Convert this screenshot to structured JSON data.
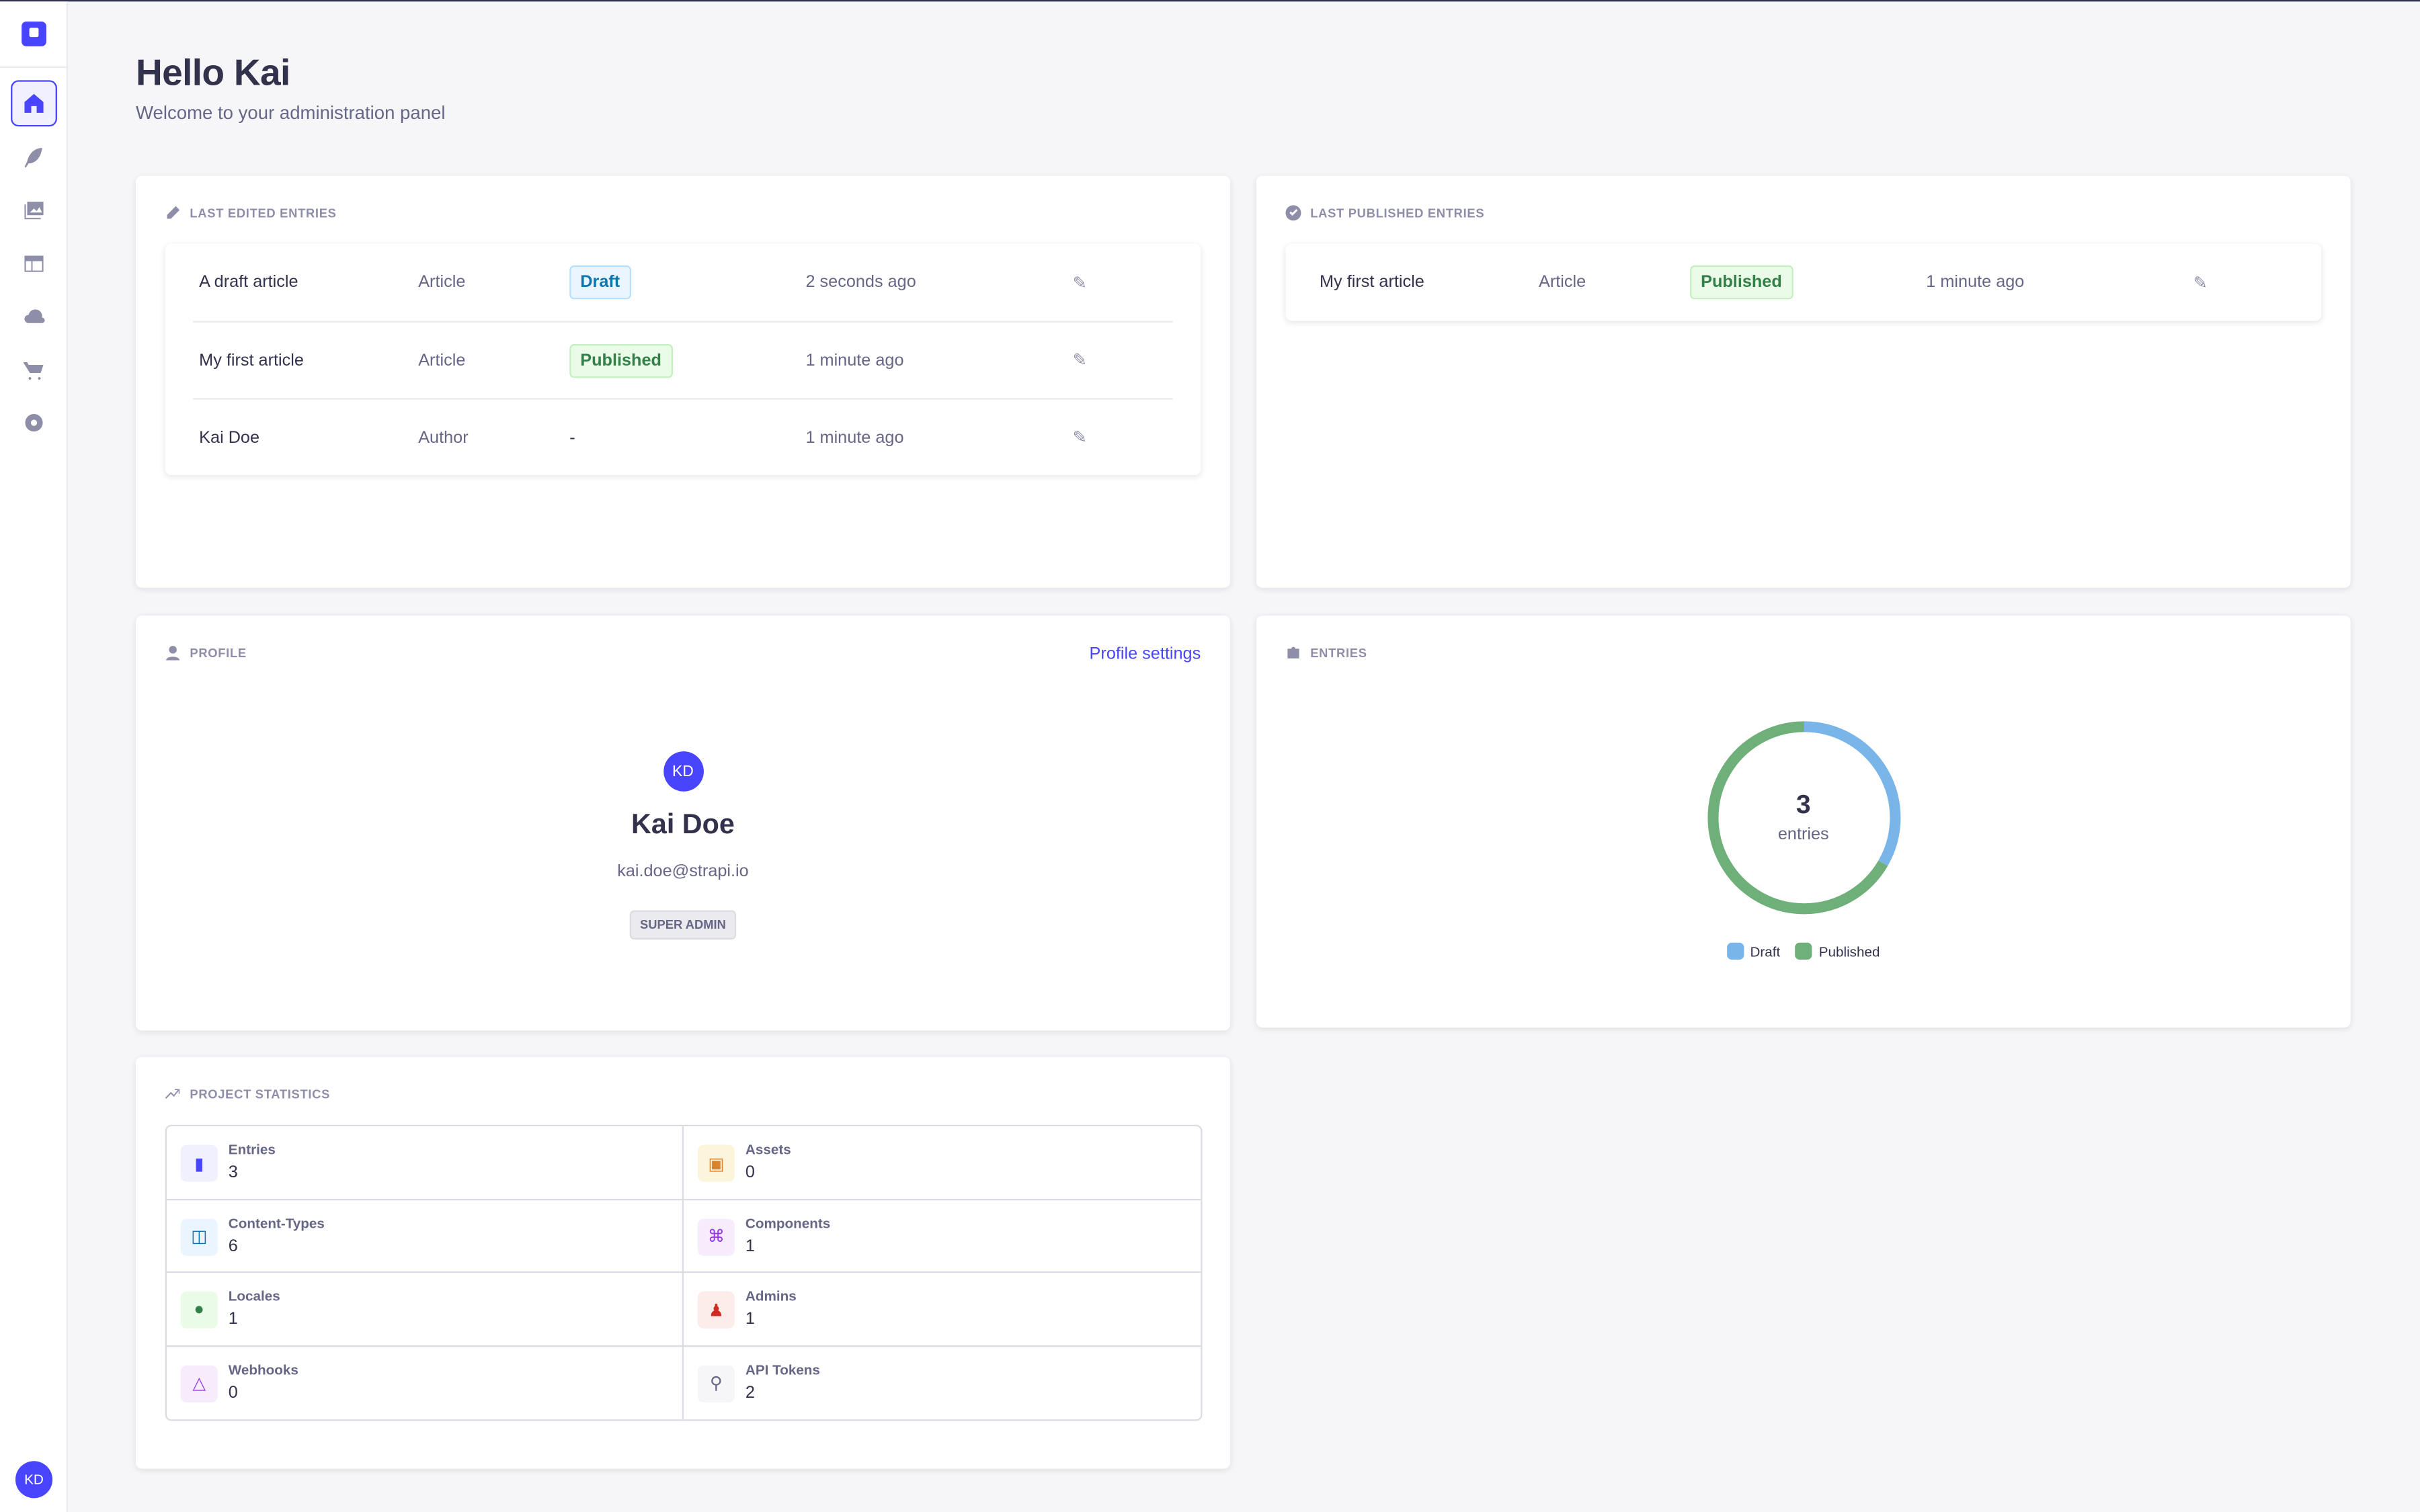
{
  "header": {
    "title": "Hello Kai",
    "subtitle": "Welcome to your administration panel"
  },
  "sidebar": {
    "items": [
      "home-icon",
      "content-manager-icon",
      "media-library-icon",
      "content-type-builder-icon",
      "cloud-icon",
      "marketplace-icon",
      "settings-icon"
    ],
    "user_initials": "KD"
  },
  "last_edited": {
    "title": "LAST EDITED ENTRIES",
    "rows": [
      {
        "name": "A draft article",
        "type": "Article",
        "status": "Draft",
        "time": "2 seconds ago"
      },
      {
        "name": "My first article",
        "type": "Article",
        "status": "Published",
        "time": "1 minute ago"
      },
      {
        "name": "Kai Doe",
        "type": "Author",
        "status": "-",
        "time": "1 minute ago"
      }
    ]
  },
  "last_published": {
    "title": "LAST PUBLISHED ENTRIES",
    "rows": [
      {
        "name": "My first article",
        "type": "Article",
        "status": "Published",
        "time": "1 minute ago"
      }
    ]
  },
  "profile": {
    "title": "PROFILE",
    "settings_link": "Profile settings",
    "initials": "KD",
    "name": "Kai Doe",
    "email": "kai.doe@strapi.io",
    "role": "SUPER ADMIN"
  },
  "entries": {
    "title": "ENTRIES",
    "total": "3",
    "unit": "entries"
  },
  "chart_data": {
    "type": "pie",
    "donut": true,
    "categories": [
      "Draft",
      "Published"
    ],
    "values": [
      1,
      2
    ],
    "colors": [
      "#7ab5ea",
      "#6fb07a"
    ],
    "legend": "bottom"
  },
  "stats": {
    "title": "PROJECT STATISTICS",
    "items": [
      {
        "label": "Entries",
        "value": "3",
        "icon": "file-icon",
        "bg": "#f0f0ff",
        "fg": "#4945ff"
      },
      {
        "label": "Assets",
        "value": "0",
        "icon": "image-icon",
        "bg": "#fdf4dc",
        "fg": "#d9822f"
      },
      {
        "label": "Content-Types",
        "value": "6",
        "icon": "layout-icon",
        "bg": "#eaf5ff",
        "fg": "#0c75af"
      },
      {
        "label": "Components",
        "value": "1",
        "icon": "puzzle-icon",
        "bg": "#f6ecfc",
        "fg": "#9736e8"
      },
      {
        "label": "Locales",
        "value": "1",
        "icon": "globe-icon",
        "bg": "#eafbe7",
        "fg": "#328048"
      },
      {
        "label": "Admins",
        "value": "1",
        "icon": "user-icon",
        "bg": "#fcecea",
        "fg": "#d02b20"
      },
      {
        "label": "Webhooks",
        "value": "0",
        "icon": "webhook-icon",
        "bg": "#f6ecfc",
        "fg": "#9736e8"
      },
      {
        "label": "API Tokens",
        "value": "2",
        "icon": "key-icon",
        "bg": "#f6f6f9",
        "fg": "#666687"
      }
    ]
  }
}
